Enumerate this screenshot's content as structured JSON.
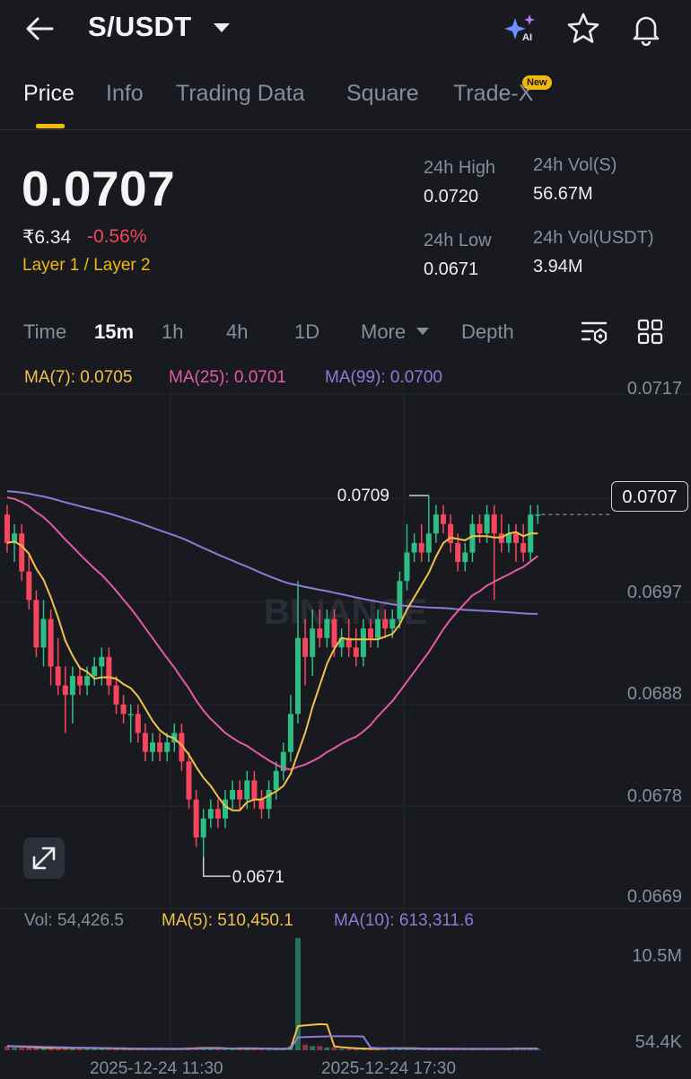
{
  "header": {
    "pair": "S/USDT"
  },
  "tabs": [
    {
      "label": "Price"
    },
    {
      "label": "Info"
    },
    {
      "label": "Trading Data"
    },
    {
      "label": "Square"
    },
    {
      "label": "Trade-X"
    }
  ],
  "new_badge": "New",
  "ticker": {
    "last_price": "0.0707",
    "fiat_price": "₹6.34",
    "change_pct": "-0.56%",
    "tags": "Layer 1 / Layer 2",
    "high_label": "24h High",
    "high_value": "0.0720",
    "low_label": "24h Low",
    "low_value": "0.0671",
    "vol_s_label": "24h Vol(S)",
    "vol_s_value": "56.67M",
    "vol_usdt_label": "24h Vol(USDT)",
    "vol_usdt_value": "3.94M"
  },
  "intervals": [
    {
      "label": "Time"
    },
    {
      "label": "15m"
    },
    {
      "label": "1h"
    },
    {
      "label": "4h"
    },
    {
      "label": "1D"
    },
    {
      "label": "More"
    },
    {
      "label": "Depth"
    }
  ],
  "ma_legend": {
    "ma7": "MA(7): 0.0705",
    "ma25": "MA(25): 0.0701",
    "ma99": "MA(99): 0.0700"
  },
  "price_axis": [
    "0.0717",
    "0.0697",
    "0.0688",
    "0.0678",
    "0.0669"
  ],
  "current_price_tag": "0.0707",
  "markers": {
    "high": "0.0709",
    "low": "0.0671"
  },
  "watermark": "BINANCE",
  "volume_legend": {
    "vol": "Vol: 54,426.5",
    "ma5": "MA(5): 510,450.1",
    "ma10": "MA(10): 613,311.6"
  },
  "volume_axis": {
    "top": "10.5M",
    "bottom": "54.4K"
  },
  "time_axis": [
    "2025-12-24 11:30",
    "2025-12-24 17:30"
  ],
  "colors": {
    "up": "#2ebd85",
    "down": "#f6465d",
    "ma7": "#f0c14b",
    "ma25": "#e35aa8",
    "ma99": "#8e7bd6",
    "accent": "#f0b90b"
  },
  "chart_data": {
    "type": "candlestick",
    "interval": "15m",
    "ylim": [
      0.0666,
      0.0721
    ],
    "candles": [
      {
        "o": 0.0707,
        "h": 0.0708,
        "l": 0.0703,
        "c": 0.0704
      },
      {
        "o": 0.0704,
        "h": 0.0706,
        "l": 0.0702,
        "c": 0.0705
      },
      {
        "o": 0.0705,
        "h": 0.0706,
        "l": 0.07,
        "c": 0.0701
      },
      {
        "o": 0.0701,
        "h": 0.0703,
        "l": 0.0697,
        "c": 0.0698
      },
      {
        "o": 0.0698,
        "h": 0.0699,
        "l": 0.0692,
        "c": 0.0693
      },
      {
        "o": 0.0693,
        "h": 0.0698,
        "l": 0.0691,
        "c": 0.0696
      },
      {
        "o": 0.0696,
        "h": 0.0697,
        "l": 0.0689,
        "c": 0.0691
      },
      {
        "o": 0.0691,
        "h": 0.0694,
        "l": 0.0688,
        "c": 0.0689
      },
      {
        "o": 0.0689,
        "h": 0.0691,
        "l": 0.0684,
        "c": 0.0688
      },
      {
        "o": 0.0688,
        "h": 0.0691,
        "l": 0.0685,
        "c": 0.069
      },
      {
        "o": 0.069,
        "h": 0.0691,
        "l": 0.0688,
        "c": 0.0689
      },
      {
        "o": 0.0689,
        "h": 0.0691,
        "l": 0.0688,
        "c": 0.069
      },
      {
        "o": 0.069,
        "h": 0.0692,
        "l": 0.0689,
        "c": 0.0691
      },
      {
        "o": 0.0691,
        "h": 0.0693,
        "l": 0.0689,
        "c": 0.0692
      },
      {
        "o": 0.0692,
        "h": 0.0693,
        "l": 0.0688,
        "c": 0.0689
      },
      {
        "o": 0.0689,
        "h": 0.069,
        "l": 0.0686,
        "c": 0.0687
      },
      {
        "o": 0.0687,
        "h": 0.0688,
        "l": 0.0685,
        "c": 0.0686
      },
      {
        "o": 0.0686,
        "h": 0.0687,
        "l": 0.0683,
        "c": 0.0686
      },
      {
        "o": 0.0686,
        "h": 0.0687,
        "l": 0.0683,
        "c": 0.0684
      },
      {
        "o": 0.0684,
        "h": 0.0685,
        "l": 0.0681,
        "c": 0.0682
      },
      {
        "o": 0.0682,
        "h": 0.0684,
        "l": 0.0681,
        "c": 0.0683
      },
      {
        "o": 0.0683,
        "h": 0.0684,
        "l": 0.0681,
        "c": 0.0682
      },
      {
        "o": 0.0682,
        "h": 0.0684,
        "l": 0.0681,
        "c": 0.0683
      },
      {
        "o": 0.0683,
        "h": 0.0685,
        "l": 0.0682,
        "c": 0.0684
      },
      {
        "o": 0.0684,
        "h": 0.0685,
        "l": 0.068,
        "c": 0.0681
      },
      {
        "o": 0.0681,
        "h": 0.0682,
        "l": 0.0676,
        "c": 0.0677
      },
      {
        "o": 0.0677,
        "h": 0.0678,
        "l": 0.0672,
        "c": 0.0673
      },
      {
        "o": 0.0673,
        "h": 0.0676,
        "l": 0.0671,
        "c": 0.0675
      },
      {
        "o": 0.0675,
        "h": 0.0677,
        "l": 0.0674,
        "c": 0.0676
      },
      {
        "o": 0.0676,
        "h": 0.0677,
        "l": 0.0674,
        "c": 0.0675
      },
      {
        "o": 0.0675,
        "h": 0.0678,
        "l": 0.0674,
        "c": 0.0677
      },
      {
        "o": 0.0677,
        "h": 0.0679,
        "l": 0.0676,
        "c": 0.0678
      },
      {
        "o": 0.0678,
        "h": 0.0679,
        "l": 0.0676,
        "c": 0.0677
      },
      {
        "o": 0.0677,
        "h": 0.068,
        "l": 0.0676,
        "c": 0.0679
      },
      {
        "o": 0.0679,
        "h": 0.068,
        "l": 0.0676,
        "c": 0.0677
      },
      {
        "o": 0.0677,
        "h": 0.0678,
        "l": 0.0675,
        "c": 0.0676
      },
      {
        "o": 0.0676,
        "h": 0.0679,
        "l": 0.0675,
        "c": 0.0678
      },
      {
        "o": 0.0678,
        "h": 0.0681,
        "l": 0.0677,
        "c": 0.068
      },
      {
        "o": 0.068,
        "h": 0.0683,
        "l": 0.0679,
        "c": 0.0682
      },
      {
        "o": 0.0682,
        "h": 0.0688,
        "l": 0.0681,
        "c": 0.0686
      },
      {
        "o": 0.0686,
        "h": 0.07,
        "l": 0.0685,
        "c": 0.0694
      },
      {
        "o": 0.0694,
        "h": 0.0696,
        "l": 0.0689,
        "c": 0.0692
      },
      {
        "o": 0.0692,
        "h": 0.0697,
        "l": 0.069,
        "c": 0.0695
      },
      {
        "o": 0.0695,
        "h": 0.0697,
        "l": 0.0693,
        "c": 0.0694
      },
      {
        "o": 0.0694,
        "h": 0.0697,
        "l": 0.0693,
        "c": 0.0696
      },
      {
        "o": 0.0696,
        "h": 0.0697,
        "l": 0.0692,
        "c": 0.0693
      },
      {
        "o": 0.0693,
        "h": 0.0695,
        "l": 0.0692,
        "c": 0.0694
      },
      {
        "o": 0.0694,
        "h": 0.0696,
        "l": 0.0692,
        "c": 0.0693
      },
      {
        "o": 0.0693,
        "h": 0.0695,
        "l": 0.0691,
        "c": 0.0692
      },
      {
        "o": 0.0692,
        "h": 0.0696,
        "l": 0.0691,
        "c": 0.0695
      },
      {
        "o": 0.0695,
        "h": 0.0696,
        "l": 0.0693,
        "c": 0.0694
      },
      {
        "o": 0.0694,
        "h": 0.0697,
        "l": 0.0693,
        "c": 0.0696
      },
      {
        "o": 0.0696,
        "h": 0.0697,
        "l": 0.0694,
        "c": 0.0695
      },
      {
        "o": 0.0695,
        "h": 0.0697,
        "l": 0.0694,
        "c": 0.0696
      },
      {
        "o": 0.0696,
        "h": 0.0701,
        "l": 0.0695,
        "c": 0.07
      },
      {
        "o": 0.07,
        "h": 0.0706,
        "l": 0.0699,
        "c": 0.0703
      },
      {
        "o": 0.0703,
        "h": 0.0705,
        "l": 0.0702,
        "c": 0.0704
      },
      {
        "o": 0.0704,
        "h": 0.0706,
        "l": 0.0702,
        "c": 0.0703
      },
      {
        "o": 0.0703,
        "h": 0.0709,
        "l": 0.0702,
        "c": 0.0705
      },
      {
        "o": 0.0705,
        "h": 0.0708,
        "l": 0.0704,
        "c": 0.0707
      },
      {
        "o": 0.0707,
        "h": 0.0708,
        "l": 0.0705,
        "c": 0.0706
      },
      {
        "o": 0.0706,
        "h": 0.0707,
        "l": 0.0703,
        "c": 0.0704
      },
      {
        "o": 0.0704,
        "h": 0.0705,
        "l": 0.0701,
        "c": 0.0702
      },
      {
        "o": 0.0702,
        "h": 0.0704,
        "l": 0.0701,
        "c": 0.0703
      },
      {
        "o": 0.0703,
        "h": 0.0707,
        "l": 0.0702,
        "c": 0.0706
      },
      {
        "o": 0.0706,
        "h": 0.0707,
        "l": 0.0704,
        "c": 0.0705
      },
      {
        "o": 0.0705,
        "h": 0.0708,
        "l": 0.0704,
        "c": 0.0707
      },
      {
        "o": 0.0707,
        "h": 0.0708,
        "l": 0.0698,
        "c": 0.0705
      },
      {
        "o": 0.0705,
        "h": 0.0707,
        "l": 0.0703,
        "c": 0.0704
      },
      {
        "o": 0.0704,
        "h": 0.0706,
        "l": 0.0703,
        "c": 0.0705
      },
      {
        "o": 0.0705,
        "h": 0.0706,
        "l": 0.0702,
        "c": 0.0704
      },
      {
        "o": 0.0704,
        "h": 0.0706,
        "l": 0.0702,
        "c": 0.0703
      },
      {
        "o": 0.0703,
        "h": 0.0708,
        "l": 0.0702,
        "c": 0.0707
      },
      {
        "o": 0.0707,
        "h": 0.0708,
        "l": 0.0706,
        "c": 0.0707
      }
    ],
    "volumes": [
      3,
      2,
      2,
      2,
      2,
      1,
      2,
      2,
      2,
      1,
      2,
      1,
      2,
      1,
      1,
      1,
      1,
      1,
      1,
      1,
      1,
      1,
      1,
      1,
      1,
      2,
      2,
      2,
      1,
      1,
      1,
      1,
      2,
      1,
      1,
      1,
      1,
      1,
      1,
      3,
      80,
      4,
      3,
      3,
      2,
      2,
      1,
      1,
      1,
      1,
      1,
      1,
      2,
      2,
      1,
      1,
      1,
      1,
      1,
      1,
      1,
      1,
      1,
      1,
      1,
      1,
      1,
      1,
      1,
      1,
      2,
      1,
      1,
      1
    ]
  }
}
